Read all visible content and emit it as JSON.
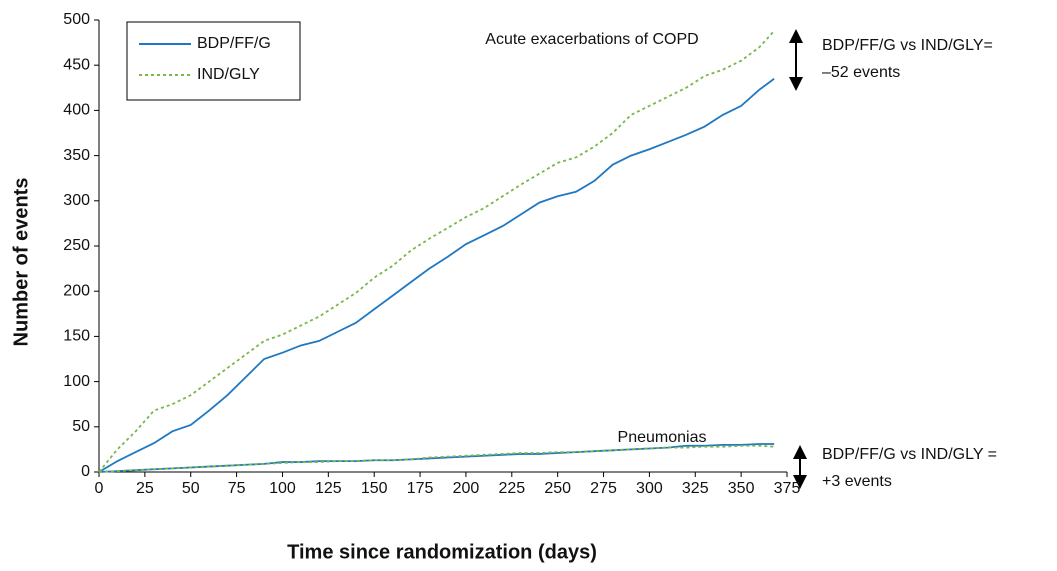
{
  "chart_data": {
    "type": "line",
    "ylabel": "Number of events",
    "xlabel": "Time since randomization (days)",
    "x": [
      0,
      10,
      20,
      30,
      40,
      50,
      60,
      70,
      80,
      90,
      100,
      110,
      120,
      130,
      140,
      150,
      160,
      170,
      180,
      190,
      200,
      210,
      220,
      230,
      240,
      250,
      260,
      270,
      280,
      290,
      300,
      310,
      320,
      330,
      340,
      350,
      360,
      368
    ],
    "series": [
      {
        "name": "BDP/FF/G",
        "color": "#1f78c1",
        "dash": "none"
      },
      {
        "name": "IND/GLY",
        "color": "#7ab648",
        "dash": "3 3"
      }
    ],
    "groups": [
      {
        "label": "Acute exacerbations of COPD",
        "annotation": [
          "BDP/FF/G vs IND/GLY=",
          "–52 events"
        ],
        "values": [
          [
            0,
            12,
            22,
            32,
            45,
            52,
            68,
            85,
            105,
            125,
            132,
            140,
            145,
            155,
            165,
            180,
            195,
            210,
            225,
            238,
            252,
            262,
            272,
            285,
            298,
            305,
            310,
            322,
            340,
            350,
            357,
            365,
            373,
            382,
            395,
            405,
            423,
            435
          ],
          [
            0,
            25,
            45,
            68,
            75,
            85,
            100,
            115,
            130,
            145,
            152,
            162,
            172,
            185,
            198,
            215,
            228,
            245,
            258,
            270,
            282,
            292,
            305,
            318,
            330,
            342,
            348,
            360,
            375,
            395,
            405,
            415,
            425,
            438,
            445,
            455,
            470,
            488
          ]
        ]
      },
      {
        "label": "Pneumonias",
        "annotation": [
          "BDP/FF/G vs IND/GLY =",
          "+3 events"
        ],
        "values": [
          [
            0,
            1,
            2,
            3,
            4,
            5,
            6,
            7,
            8,
            9,
            11,
            11,
            12,
            12,
            12,
            13,
            13,
            14,
            15,
            16,
            17,
            18,
            19,
            20,
            20,
            21,
            22,
            23,
            24,
            25,
            26,
            27,
            29,
            29,
            30,
            30,
            31,
            31
          ],
          [
            0,
            1,
            2,
            3,
            4,
            5,
            6,
            7,
            8,
            9,
            10,
            11,
            11,
            12,
            12,
            13,
            13,
            14,
            16,
            17,
            18,
            19,
            20,
            21,
            21,
            22,
            22,
            23,
            24,
            25,
            26,
            27,
            27,
            28,
            28,
            29,
            29,
            28
          ]
        ]
      }
    ],
    "xlim": [
      0,
      375
    ],
    "xticks": [
      0,
      25,
      50,
      75,
      100,
      125,
      150,
      175,
      200,
      225,
      250,
      275,
      300,
      325,
      350,
      375
    ],
    "ylim": [
      0,
      500
    ],
    "yticks": [
      0,
      50,
      100,
      150,
      200,
      250,
      300,
      350,
      400,
      450,
      500
    ]
  }
}
